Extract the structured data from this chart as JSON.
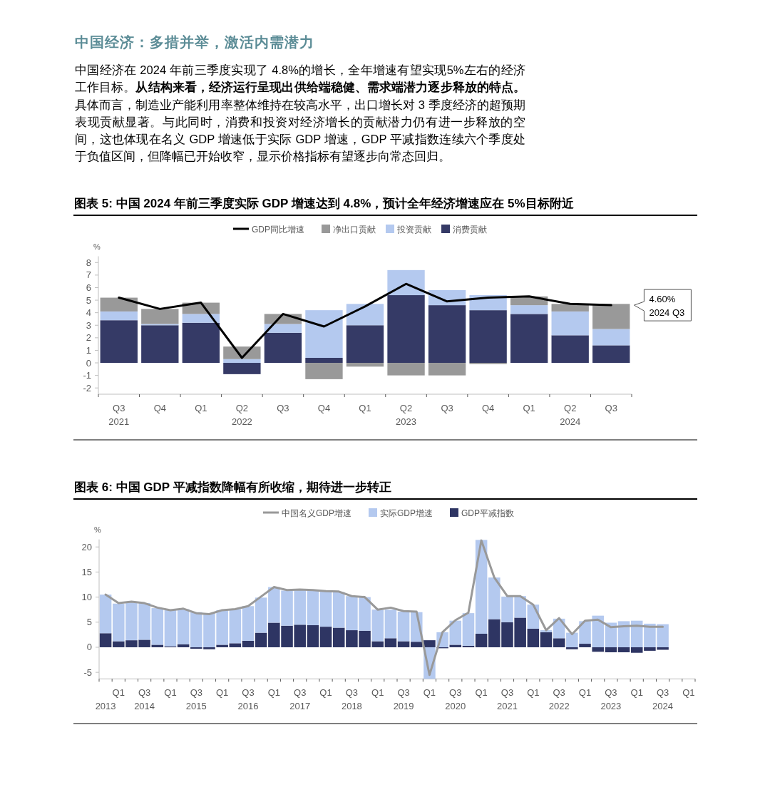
{
  "chart_data": [
    {
      "type": "bar",
      "title": "图表 5: 中国 2024 年前三季度实际 GDP 增速达到 4.8%，预计全年经济增速应在 5%目标附近",
      "ylabel": "%",
      "categories": [
        "Q3\n2021",
        "Q4",
        "Q1",
        "Q2\n2022",
        "Q3",
        "Q4",
        "Q1",
        "Q2\n2023",
        "Q3",
        "Q4",
        "Q1",
        "Q2\n2024",
        "Q3"
      ],
      "stacked": true,
      "legend": "top",
      "ylim": [
        -2.5,
        8.5
      ],
      "yticks": [
        -2,
        -1,
        0,
        1,
        2,
        3,
        4,
        5,
        6,
        7,
        8
      ],
      "series": [
        {
          "name": "消费贡献",
          "color": "#353a66",
          "values": [
            3.4,
            3.0,
            3.2,
            -0.9,
            2.4,
            0.4,
            3.0,
            5.4,
            4.6,
            4.2,
            3.9,
            2.2,
            1.4
          ]
        },
        {
          "name": "投资贡献",
          "color": "#b4c9ef",
          "values": [
            0.7,
            0.1,
            0.7,
            0.3,
            0.7,
            3.8,
            1.7,
            2.0,
            1.2,
            1.2,
            0.7,
            1.9,
            1.3
          ]
        },
        {
          "name": "净出口贡献",
          "color": "#999999",
          "values": [
            1.1,
            1.2,
            0.9,
            1.0,
            0.8,
            -1.3,
            -0.3,
            -1.0,
            -1.0,
            -0.1,
            0.7,
            0.6,
            2.0
          ]
        },
        {
          "name": "GDP同比增速",
          "color": "#000000",
          "type": "line",
          "values": [
            5.2,
            4.3,
            4.8,
            0.4,
            3.9,
            2.9,
            4.5,
            6.3,
            4.9,
            5.2,
            5.3,
            4.7,
            4.6
          ]
        }
      ],
      "annotations": [
        "4.60%\n2024 Q3",
        "中国经济：多措并举，激活内需潜力",
        "中国经济在 2024 年前三季度实现了 4.8%的增长，全年增速有望实现5%左右的经济工作目标。",
        "从结构来看，经济运行呈现出供给端稳健、需求端潜力逐步释放的特点。",
        "具体而言，制造业产能利用率整体维持在较高水平，出口增长对 3 季度经济的超预期表现贡献显著。与此同时，消费和投资对经济增长的贡献潜力仍有进一步释放的空间，这也体现在名义 GDP 增速低于实际 GDP 增速，GDP 平减指数连续六个季度处于负值区间，但降幅已开始收窄，显示价格指标有望逐步向常态回归。"
      ]
    },
    {
      "type": "bar",
      "title": "图表 6: 中国 GDP 平减指数降幅有所收缩，期待进一步转正",
      "ylabel": "%",
      "categories": [
        "\n2013",
        "Q1",
        null,
        "Q3\n2014",
        null,
        "Q1",
        null,
        "Q3\n2015",
        null,
        "Q1",
        null,
        "Q3\n2016",
        null,
        "Q1",
        null,
        "Q3\n2017",
        null,
        "Q1",
        null,
        "Q3\n2018",
        null,
        "Q1",
        null,
        "Q3\n2019",
        null,
        "Q1",
        null,
        "Q3\n2020",
        null,
        "Q1",
        null,
        "Q3\n2021",
        null,
        "Q1",
        null,
        "Q3\n2022",
        null,
        "Q1",
        null,
        "Q3\n2023",
        null,
        "Q1",
        null,
        "Q3\n2024",
        null,
        "Q1"
      ],
      "stacked": true,
      "legend": "top",
      "ylim": [
        -6.3,
        21.5
      ],
      "yticks": [
        -5,
        0,
        5,
        10,
        15,
        20
      ],
      "series": [
        {
          "name": "GDP平减指数",
          "color": "#2e3563",
          "values": [
            2.8,
            1.2,
            1.4,
            1.5,
            0.5,
            0.2,
            0.6,
            -0.3,
            -0.4,
            0.5,
            0.8,
            1.3,
            2.9,
            4.9,
            4.3,
            4.5,
            4.4,
            4.1,
            3.9,
            3.4,
            3.3,
            1.2,
            1.8,
            1.2,
            1.1,
            1.4,
            -0.2,
            0.5,
            0.3,
            2.7,
            5.6,
            5.0,
            5.9,
            3.7,
            3.0,
            1.8,
            -0.4,
            0.7,
            -0.9,
            -1.0,
            -1.0,
            -1.1,
            -0.7,
            -0.5,
            null,
            null
          ]
        },
        {
          "name": "实际GDP增速",
          "color": "#b4c9ef",
          "values": [
            7.7,
            7.5,
            7.6,
            7.3,
            7.3,
            7.2,
            7.0,
            7.0,
            6.8,
            6.9,
            6.8,
            6.9,
            7.0,
            7.1,
            7.0,
            6.9,
            6.9,
            7.1,
            7.1,
            6.8,
            6.7,
            6.3,
            5.7,
            5.9,
            5.9,
            -6.3,
            3.0,
            4.8,
            6.5,
            18.7,
            8.3,
            5.1,
            4.3,
            4.8,
            0.4,
            3.9,
            2.9,
            4.5,
            6.3,
            4.9,
            5.2,
            5.3,
            4.7,
            4.6,
            null,
            null
          ]
        },
        {
          "name": "中国名义GDP增速",
          "color": "#999999",
          "type": "line",
          "values": [
            10.5,
            8.8,
            9.1,
            8.8,
            7.9,
            7.4,
            7.7,
            6.8,
            6.6,
            7.4,
            7.6,
            8.2,
            10.1,
            12.0,
            11.4,
            11.5,
            11.4,
            11.2,
            11.1,
            10.2,
            10.0,
            7.5,
            7.9,
            7.2,
            7.1,
            -5.5,
            3.0,
            5.4,
            6.9,
            21.3,
            13.9,
            10.2,
            10.2,
            8.5,
            3.4,
            5.8,
            2.6,
            5.3,
            5.5,
            4.0,
            4.2,
            4.3,
            4.1,
            4.1,
            null,
            null
          ]
        }
      ]
    }
  ]
}
